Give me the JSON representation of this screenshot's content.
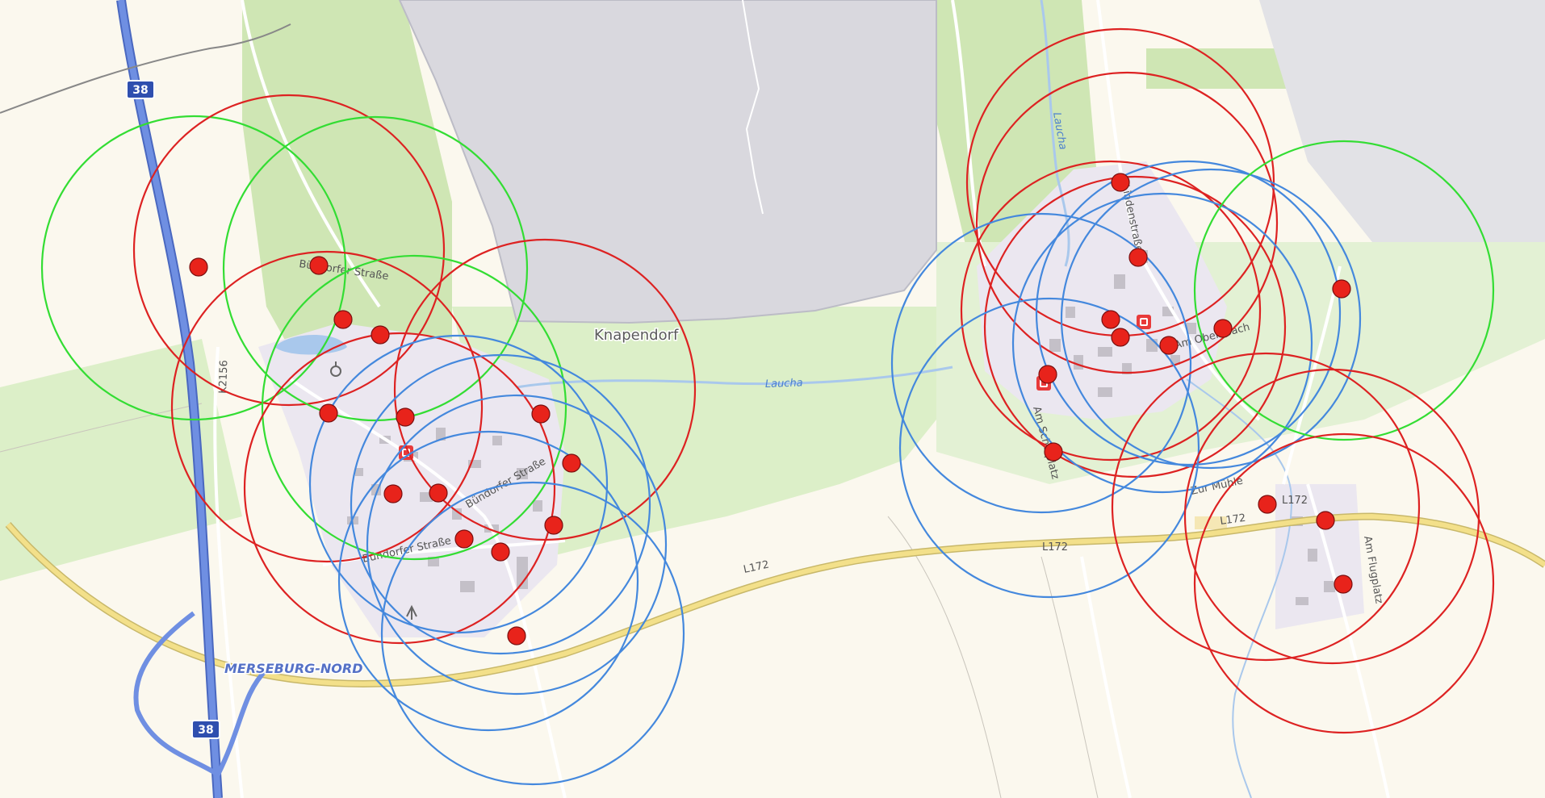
{
  "map": {
    "highway_shields": [
      "38",
      "38"
    ],
    "place_labels": {
      "village": "Knapendorf",
      "junction": "MERSEBURG-NORD"
    },
    "road_labels": {
      "k2156": "K2156",
      "l172_a": "L172",
      "l172_b": "L172",
      "l172_c": "L172",
      "l172_d": "L172",
      "street_1": "Bündorfer Straße",
      "street_2": "Bündorfer Straße",
      "street_3": "Bündorfer Straße",
      "street_4": "Am Schulplatz",
      "street_5": "Am Obersbach",
      "street_6": "Lindenstraße",
      "street_7": "Zur Mühle",
      "street_8": "Am Flugplatz"
    },
    "water_labels": {
      "laucha_1": "Laucha",
      "laucha_2": "Laucha"
    },
    "colors": {
      "land": "#fbf8ee",
      "forest": "#cfe6b4",
      "meadow": "#dcefc8",
      "lake": "#d9d8de",
      "built_up": "#ebe7f0",
      "water": "#a9c8ec",
      "highway": "#6688dd",
      "main_road": "#f3e08a",
      "circle_green": "#33dd33",
      "circle_red": "#dd2222",
      "circle_blue": "#4488dd",
      "marker_fill": "#e8231b"
    },
    "icons": [
      "poi-red-icon",
      "poi-red-icon",
      "poi-red-icon",
      "poi-grey-icon",
      "antenna-icon"
    ]
  }
}
